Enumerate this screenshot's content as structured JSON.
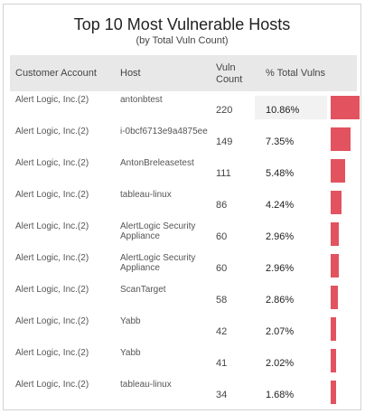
{
  "widget": {
    "title": "Top 10 Most Vulnerable Hosts",
    "subtitle": "(by Total Vuln Count)",
    "bar_color": "#e2535f",
    "highlight_color": "#f2f2f2"
  },
  "columns": {
    "customer": "Customer Account",
    "host": "Host",
    "count_line1": "Vuln",
    "count_line2": "Count",
    "pct": "% Total Vulns"
  },
  "rows": [
    {
      "customer": "Alert Logic, Inc.(2)",
      "host_line1": "antonbtest",
      "host_line2": "",
      "count": "220",
      "pct": "10.86%",
      "pct_value": 10.86
    },
    {
      "customer": "Alert Logic, Inc.(2)",
      "host_line1": "i-0bcf6713e9a4875ee",
      "host_line2": "",
      "count": "149",
      "pct": "7.35%",
      "pct_value": 7.35
    },
    {
      "customer": "Alert Logic, Inc.(2)",
      "host_line1": "AntonBreleasetest",
      "host_line2": "",
      "count": "111",
      "pct": "5.48%",
      "pct_value": 5.48
    },
    {
      "customer": "Alert Logic, Inc.(2)",
      "host_line1": "tableau-linux",
      "host_line2": "",
      "count": "86",
      "pct": "4.24%",
      "pct_value": 4.24
    },
    {
      "customer": "Alert Logic, Inc.(2)",
      "host_line1": "AlertLogic Security",
      "host_line2": "Appliance",
      "count": "60",
      "pct": "2.96%",
      "pct_value": 2.96
    },
    {
      "customer": "Alert Logic, Inc.(2)",
      "host_line1": "AlertLogic Security",
      "host_line2": "Appliance",
      "count": "60",
      "pct": "2.96%",
      "pct_value": 2.96
    },
    {
      "customer": "Alert Logic, Inc.(2)",
      "host_line1": "ScanTarget",
      "host_line2": "",
      "count": "58",
      "pct": "2.86%",
      "pct_value": 2.86
    },
    {
      "customer": "Alert Logic, Inc.(2)",
      "host_line1": "Yabb",
      "host_line2": "",
      "count": "42",
      "pct": "2.07%",
      "pct_value": 2.07
    },
    {
      "customer": "Alert Logic, Inc.(2)",
      "host_line1": "Yabb",
      "host_line2": "",
      "count": "41",
      "pct": "2.02%",
      "pct_value": 2.02
    },
    {
      "customer": "Alert Logic, Inc.(2)",
      "host_line1": "tableau-linux",
      "host_line2": "",
      "count": "34",
      "pct": "1.68%",
      "pct_value": 1.68
    }
  ]
}
